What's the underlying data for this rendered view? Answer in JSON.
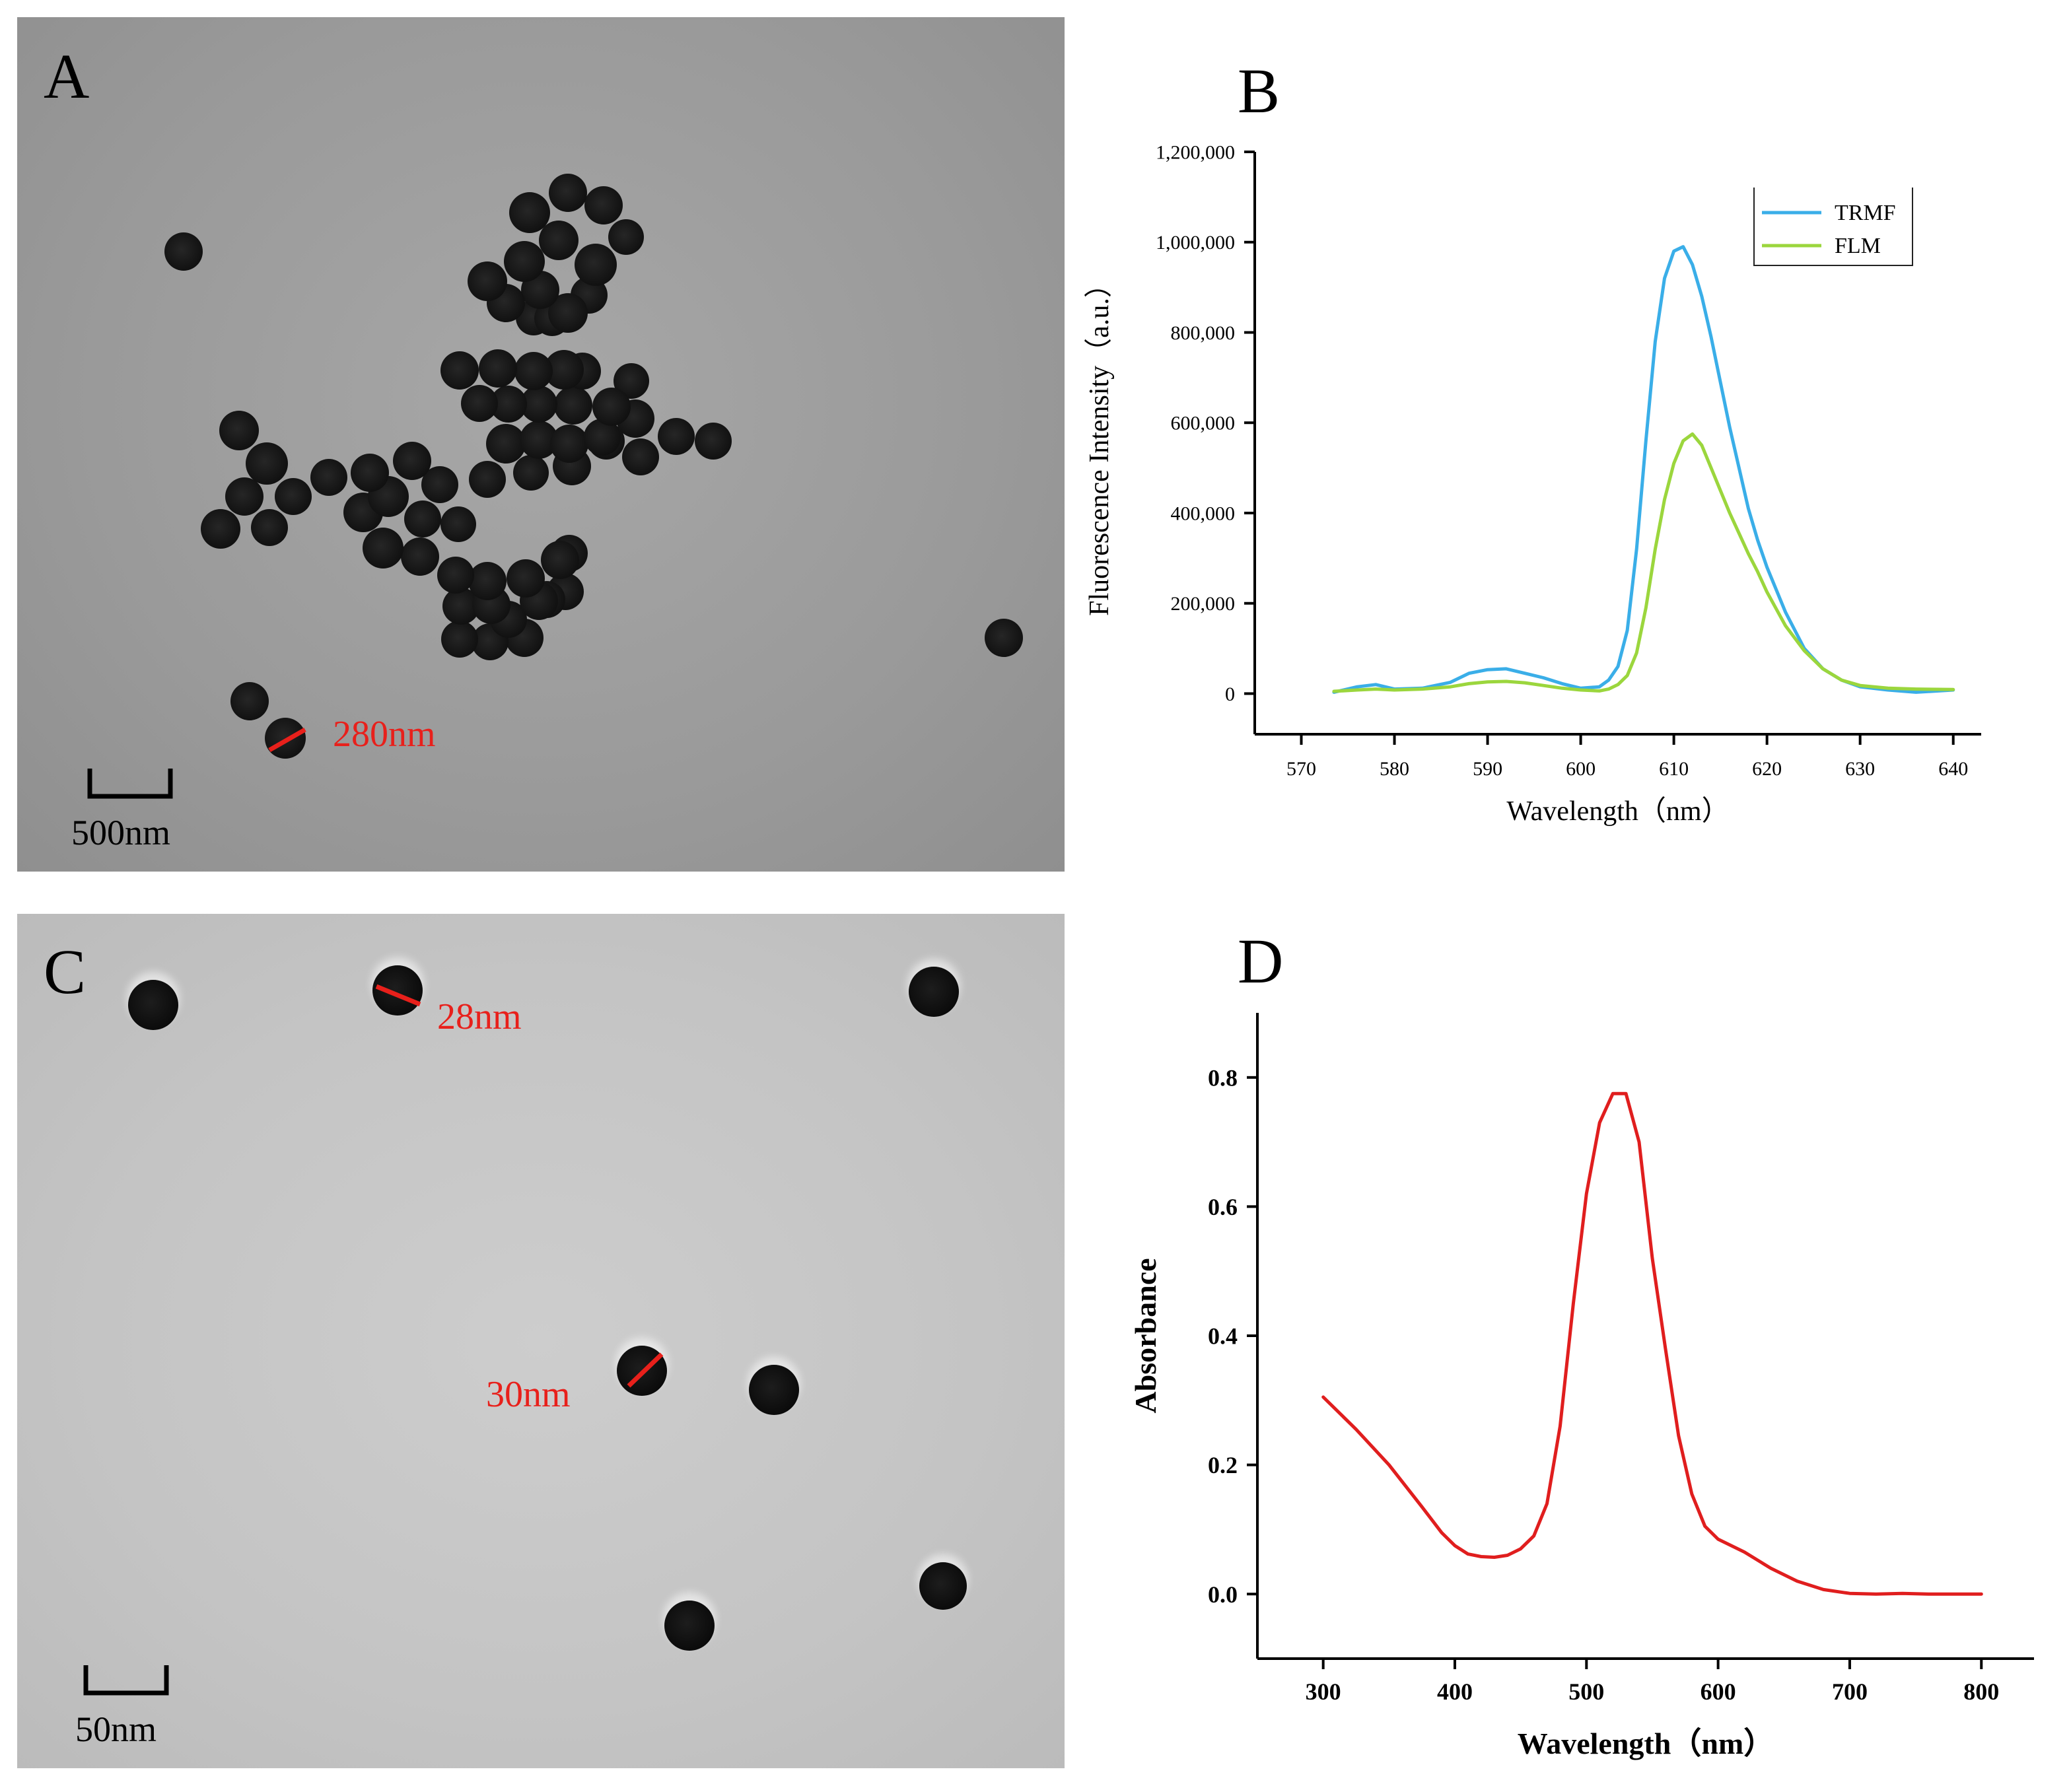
{
  "panels": {
    "a": {
      "letter": "A",
      "size_label": "280nm",
      "scale_label": "500nm"
    },
    "b": {
      "letter": "B"
    },
    "c": {
      "letter": "C",
      "size_label_1": "28nm",
      "size_label_2": "30nm",
      "scale_label": "50nm"
    },
    "d": {
      "letter": "D"
    }
  },
  "chart_data": [
    {
      "panel": "B",
      "type": "line",
      "title": "",
      "xlabel": "Wavelength（nm）",
      "ylabel": "Fluorescence Intensity（a.u.）",
      "xlim": [
        565,
        643
      ],
      "ylim": [
        -90000,
        1200000
      ],
      "xticks": [
        570,
        580,
        590,
        600,
        610,
        620,
        630,
        640
      ],
      "xtick_labels": [
        "570",
        "580",
        "590",
        "600",
        "610",
        "620",
        "630",
        "640"
      ],
      "yticks": [
        0,
        200000,
        400000,
        600000,
        800000,
        1000000,
        1200000
      ],
      "ytick_labels": [
        "0",
        "200,000",
        "400,000",
        "600,000",
        "800,000",
        "1,000,000",
        "1,200,000"
      ],
      "legend": "top-right",
      "series": [
        {
          "name": "TRMF",
          "color": "#3aaee8",
          "x": [
            573.5,
            576,
            578,
            580,
            583,
            586,
            588,
            590,
            592,
            594,
            596,
            598,
            600,
            602,
            603,
            604,
            605,
            606,
            607,
            608,
            609,
            610,
            611,
            612,
            613,
            614,
            615,
            616,
            617,
            618,
            619,
            620,
            622,
            624,
            626,
            628,
            630,
            633,
            636,
            640
          ],
          "y": [
            3000,
            15000,
            20000,
            10000,
            12000,
            25000,
            45000,
            53000,
            55000,
            45000,
            35000,
            22000,
            12000,
            15000,
            30000,
            60000,
            140000,
            320000,
            560000,
            780000,
            920000,
            980000,
            990000,
            950000,
            880000,
            790000,
            690000,
            590000,
            500000,
            410000,
            340000,
            280000,
            180000,
            100000,
            55000,
            30000,
            15000,
            8000,
            3000,
            8000
          ]
        },
        {
          "name": "FLM",
          "color": "#9bd63d",
          "x": [
            573.5,
            576,
            578,
            580,
            583,
            586,
            588,
            590,
            592,
            594,
            596,
            598,
            600,
            602,
            603,
            604,
            605,
            606,
            607,
            608,
            609,
            610,
            611,
            612,
            613,
            614,
            615,
            616,
            617,
            618,
            619,
            620,
            622,
            624,
            626,
            628,
            630,
            633,
            636,
            640
          ],
          "y": [
            5000,
            8000,
            10000,
            8000,
            10000,
            15000,
            22000,
            26000,
            27000,
            24000,
            18000,
            12000,
            8000,
            6000,
            10000,
            20000,
            40000,
            90000,
            190000,
            320000,
            430000,
            510000,
            560000,
            575000,
            550000,
            500000,
            450000,
            400000,
            355000,
            310000,
            270000,
            225000,
            150000,
            95000,
            55000,
            30000,
            18000,
            12000,
            10000,
            9000
          ]
        }
      ]
    },
    {
      "panel": "D",
      "type": "line",
      "title": "",
      "xlabel": "Wavelength（nm）",
      "ylabel": "Absorbance",
      "xlim": [
        250,
        840
      ],
      "ylim": [
        -0.1,
        0.9
      ],
      "xticks": [
        300,
        400,
        500,
        600,
        700,
        800
      ],
      "xtick_labels": [
        "300",
        "400",
        "500",
        "600",
        "700",
        "800"
      ],
      "yticks": [
        0,
        0.2,
        0.4,
        0.6,
        0.8
      ],
      "ytick_labels": [
        "0.0",
        "0.2",
        "0.4",
        "0.6",
        "0.8"
      ],
      "series": [
        {
          "name": "Absorbance",
          "color": "#e01e1e",
          "x": [
            300,
            325,
            350,
            375,
            390,
            400,
            410,
            420,
            430,
            440,
            450,
            460,
            470,
            480,
            490,
            500,
            510,
            520,
            530,
            540,
            550,
            560,
            570,
            580,
            590,
            600,
            620,
            640,
            660,
            680,
            700,
            720,
            740,
            760,
            780,
            800
          ],
          "y": [
            0.305,
            0.255,
            0.2,
            0.135,
            0.095,
            0.075,
            0.062,
            0.058,
            0.057,
            0.06,
            0.07,
            0.09,
            0.14,
            0.26,
            0.45,
            0.62,
            0.73,
            0.775,
            0.775,
            0.7,
            0.52,
            0.38,
            0.245,
            0.155,
            0.105,
            0.085,
            0.065,
            0.04,
            0.02,
            0.007,
            0.001,
            0.0,
            0.001,
            0.0,
            0.0,
            0.0
          ]
        }
      ]
    }
  ]
}
